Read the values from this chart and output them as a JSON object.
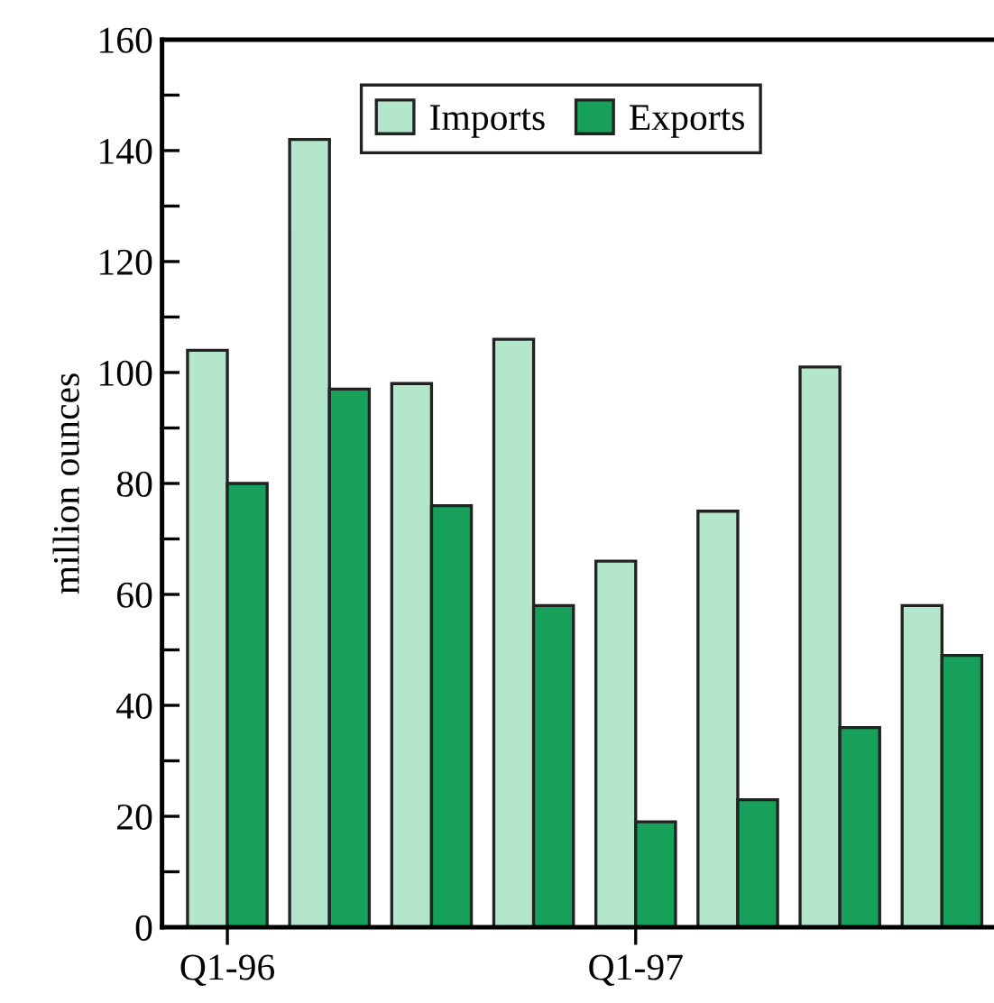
{
  "chart_data": {
    "type": "bar",
    "ylabel": "million ounces",
    "categories": [
      "Q1-96",
      null,
      null,
      null,
      "Q1-97",
      null,
      null,
      null
    ],
    "series": [
      {
        "name": "Imports",
        "color": "#b4e6cc",
        "values": [
          104,
          142,
          98,
          106,
          66,
          75,
          101,
          58
        ]
      },
      {
        "name": "Exports",
        "color": "#16a05a",
        "values": [
          80,
          97,
          76,
          58,
          19,
          23,
          36,
          49
        ]
      }
    ],
    "ylim": [
      0,
      160
    ],
    "yticks": [
      0,
      {
        "value": 10,
        "label": null
      },
      20,
      {
        "value": 30,
        "label": null
      },
      40,
      {
        "value": 50,
        "label": null
      },
      60,
      {
        "value": 70,
        "label": null
      },
      80,
      {
        "value": 90,
        "label": null
      },
      100,
      {
        "value": 110,
        "label": null
      },
      120,
      {
        "value": 130,
        "label": null
      },
      140,
      {
        "value": 150,
        "label": null
      },
      160
    ],
    "grid": false,
    "legend": "top"
  }
}
